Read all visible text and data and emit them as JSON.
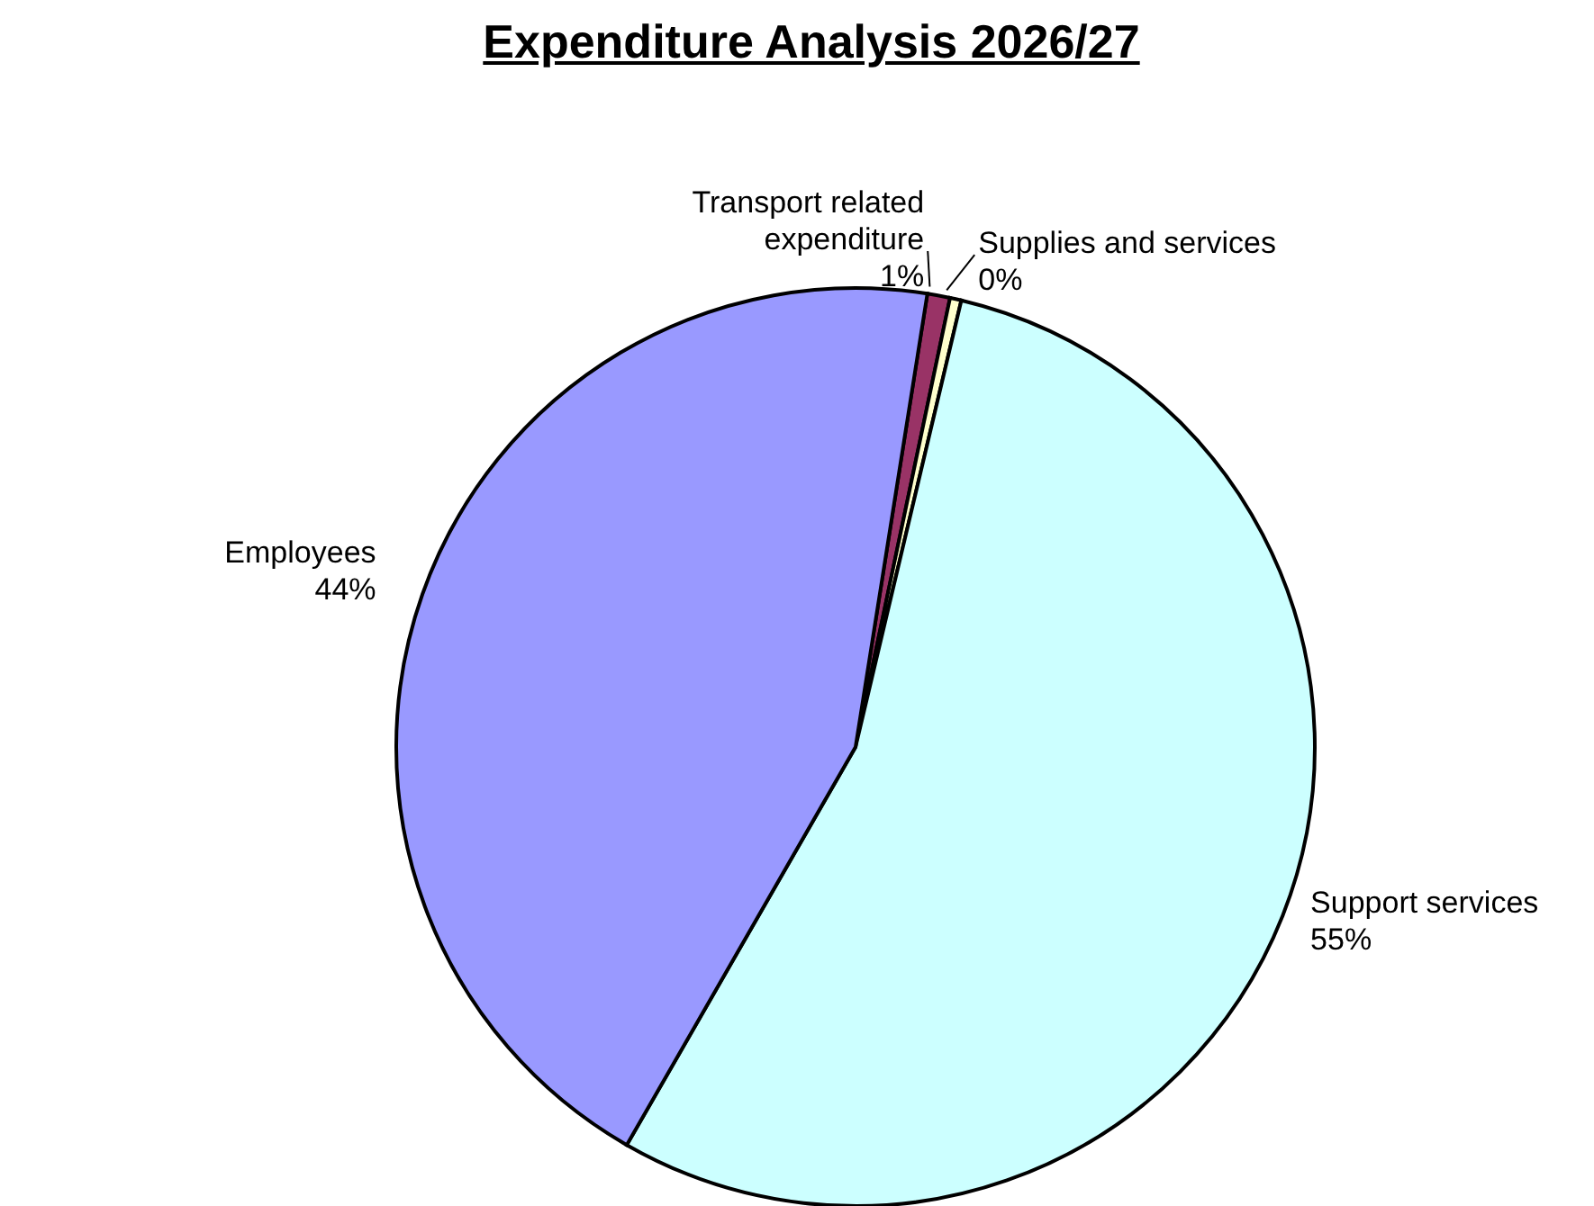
{
  "chart_data": {
    "type": "pie",
    "title": "Expenditure Analysis 2026/27",
    "categories": [
      "Transport related expenditure",
      "Supplies and services",
      "Support services",
      "Employees"
    ],
    "values": [
      0.8,
      0.4,
      54.6,
      44.2
    ],
    "value_labels": [
      "1%",
      "0%",
      "55%",
      "44%"
    ],
    "colors": [
      "#993366",
      "#ffffcc",
      "#ccffff",
      "#9999ff"
    ],
    "legend": false
  }
}
